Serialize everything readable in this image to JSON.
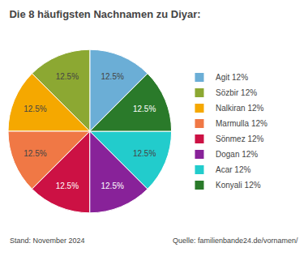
{
  "chart_data": {
    "type": "pie",
    "title": "Die 8 häufigsten Nachnamen zu Diyar:",
    "categories": [
      "Agit 12%",
      "Sözbir 12%",
      "Nalkiran 12%",
      "Marmulla 12%",
      "Sönmez 12%",
      "Dogan 12%",
      "Acar 12%",
      "Konyali 12%"
    ],
    "values": [
      12.5,
      12.5,
      12.5,
      12.5,
      12.5,
      12.5,
      12.5,
      12.5
    ],
    "value_labels": [
      "12.5%",
      "12.5%",
      "12.5%",
      "12.5%",
      "12.5%",
      "12.5%",
      "12.5%",
      "12.5%"
    ],
    "data_labels": true,
    "colors": [
      "#6baed6",
      "#8ca832",
      "#f5a800",
      "#f07845",
      "#cc1144",
      "#882299",
      "#22cccc",
      "#2a7a2a"
    ],
    "legend": "right",
    "annotations": [
      "Stand: November 2024",
      "Quelle: familienbande24.de/vornamen/"
    ]
  }
}
